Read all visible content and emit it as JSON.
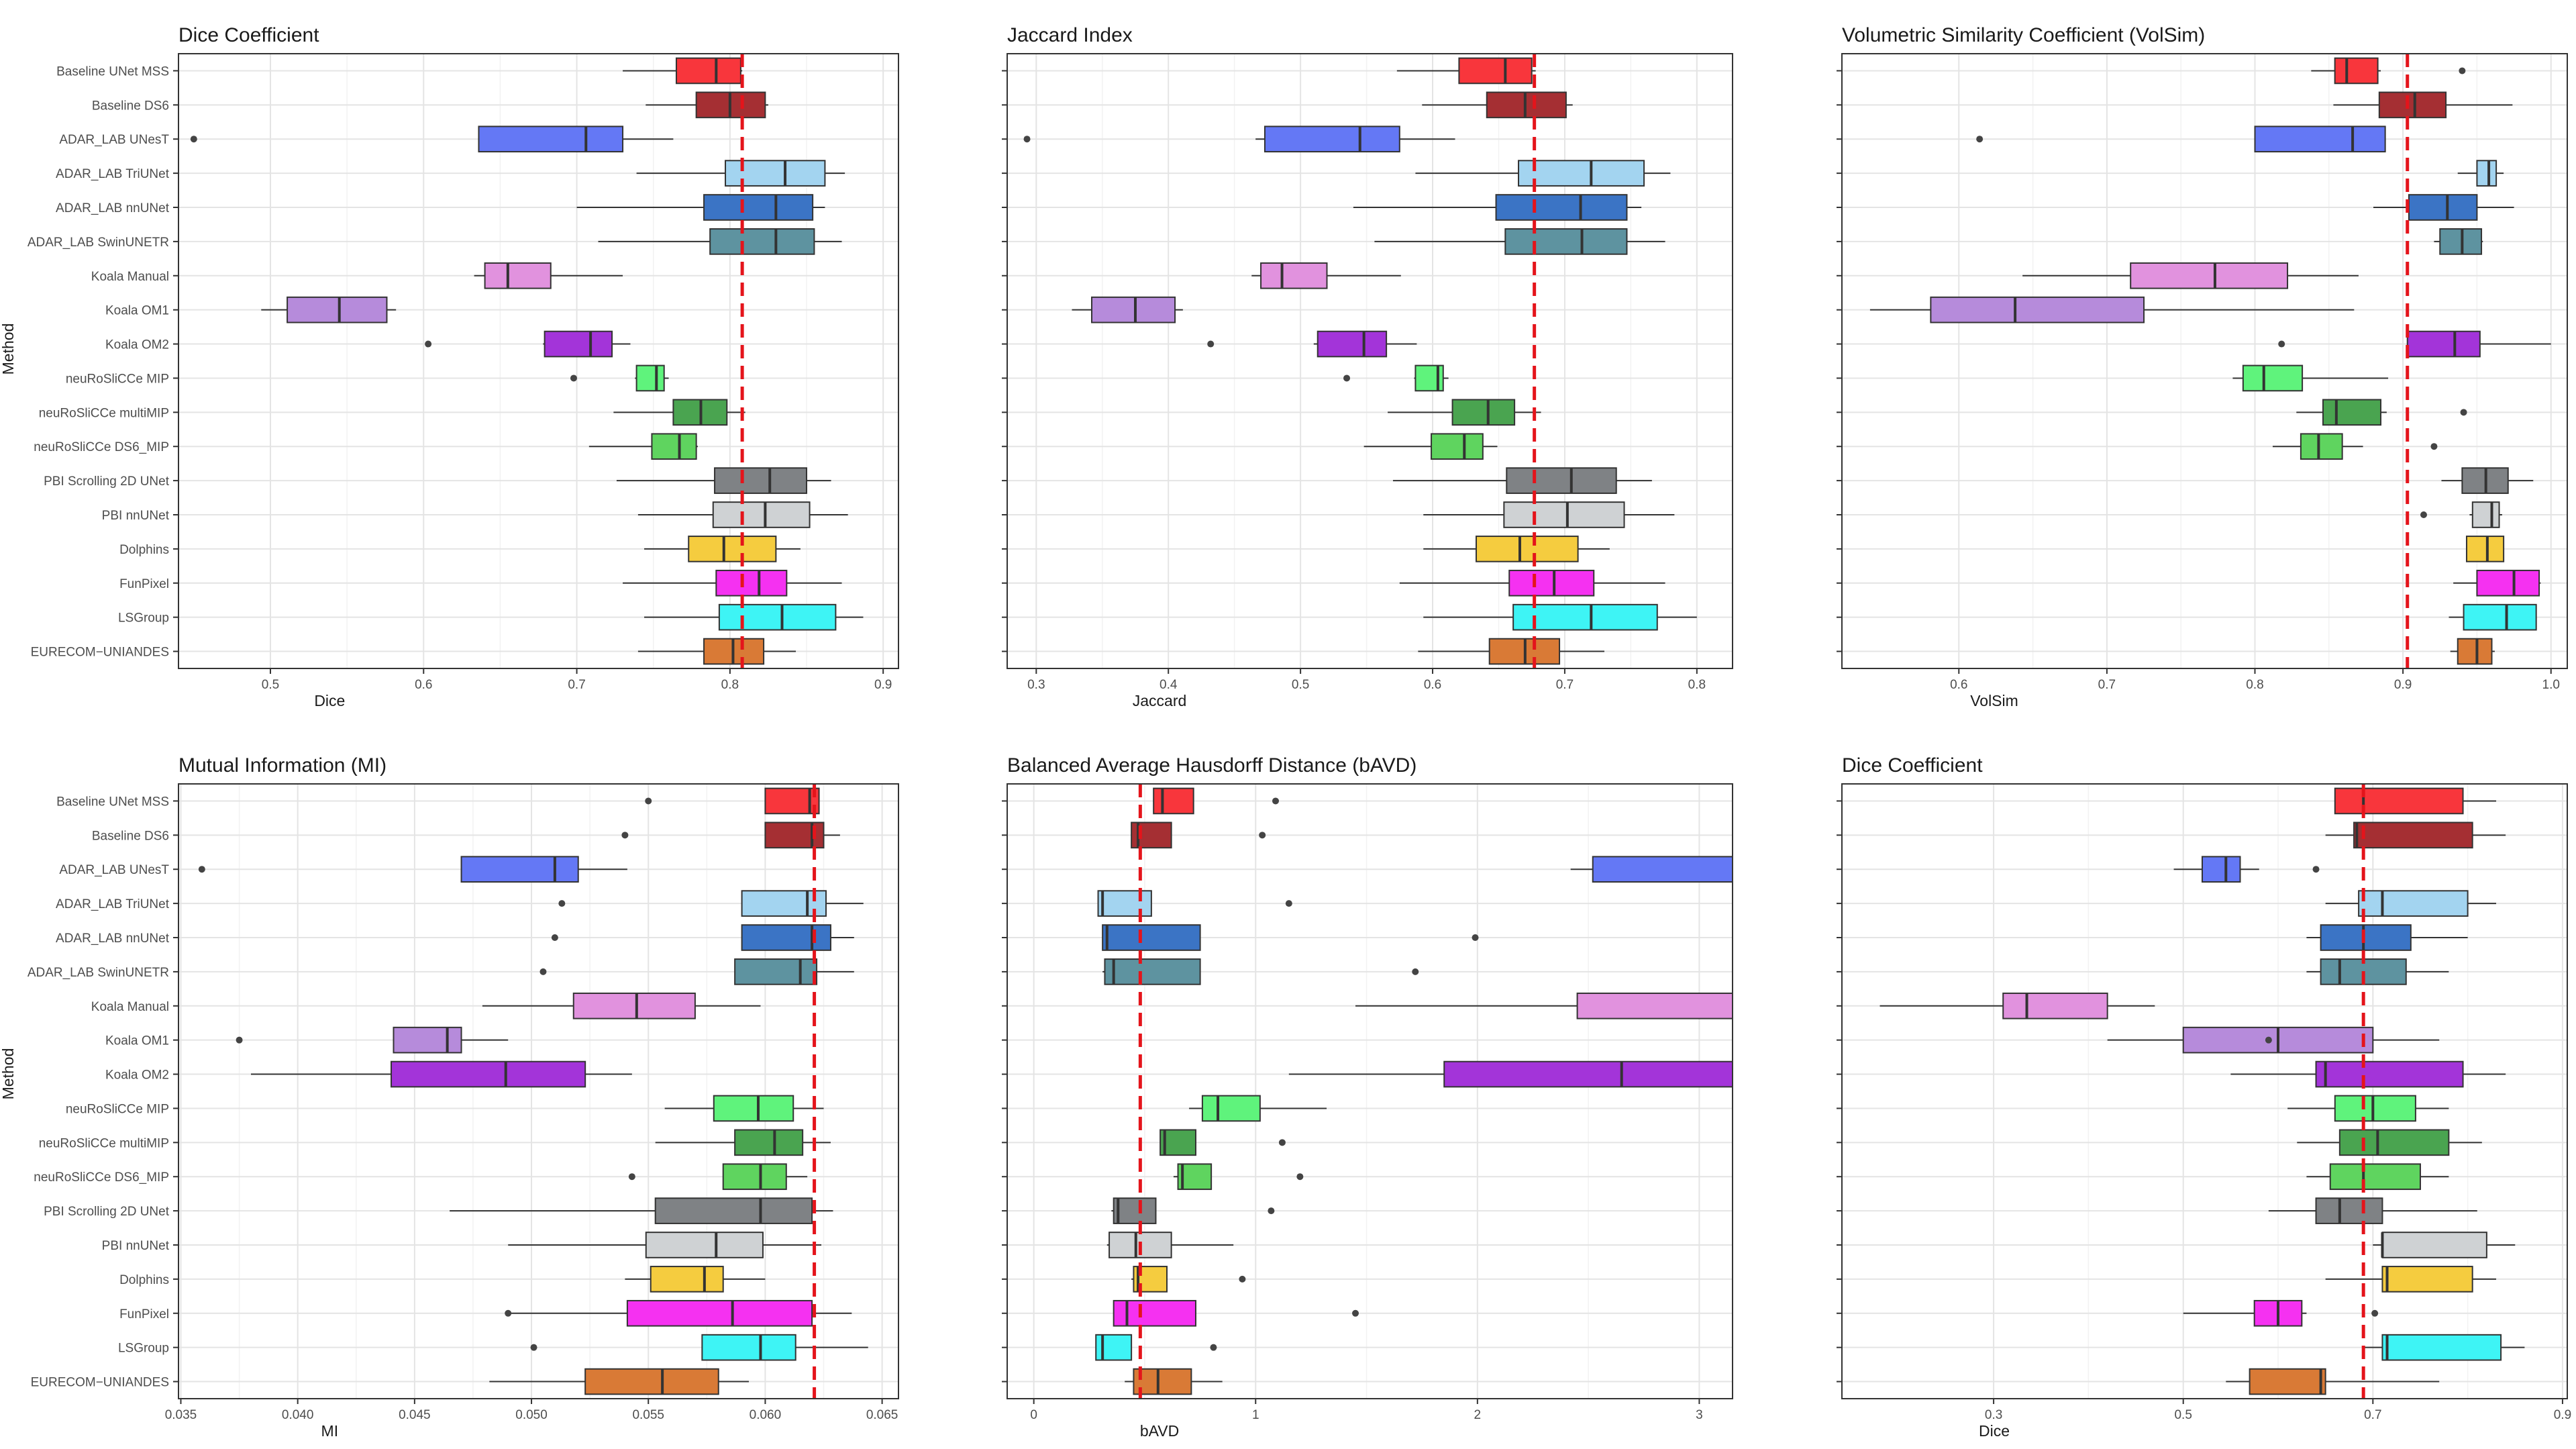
{
  "figure": {
    "y_axis_title": "Method",
    "methods": [
      "Baseline UNet MSS",
      "Baseline DS6",
      "ADAR_LAB UNesT",
      "ADAR_LAB TriUNet",
      "ADAR_LAB nnUNet",
      "ADAR_LAB SwinUNETR",
      "Koala Manual",
      "Koala OM1",
      "Koala OM2",
      "neuRoSliCCe MIP",
      "neuRoSliCCe multiMIP",
      "neuRoSliCCe DS6_MIP",
      "PBI Scrolling 2D UNet",
      "PBI nnUNet",
      "Dolphins",
      "FunPixel",
      "LSGroup",
      "EURECOM−UNIANDES"
    ]
  },
  "colors": [
    "#f8363c",
    "#a52f33",
    "#6478f5",
    "#a3d4f0",
    "#3b74c5",
    "#5e93a0",
    "#e192de",
    "#b68bdb",
    "#a334d9",
    "#5ff37c",
    "#4aa450",
    "#5fd45f",
    "#7f8285",
    "#cfd2d4",
    "#f5cc3f",
    "#f531f1",
    "#3ef4f5",
    "#d97a36"
  ],
  "chart_data": [
    {
      "type": "boxplot",
      "title": "Dice Coefficient",
      "xlabel": "Dice",
      "ylabel": "Method",
      "xlim": [
        0.44,
        0.91
      ],
      "xticks": [
        0.5,
        0.6,
        0.7,
        0.8,
        0.9
      ],
      "xtick_labels": [
        "0.5",
        "0.6",
        "0.7",
        "0.8",
        "0.9"
      ],
      "reference_line": 0.808,
      "boxes": [
        [
          0.73,
          0.765,
          0.791,
          0.807,
          0.808
        ],
        [
          0.745,
          0.778,
          0.8,
          0.823,
          0.825
        ],
        [
          0.636,
          0.636,
          0.706,
          0.73,
          0.763
        ],
        [
          0.739,
          0.797,
          0.836,
          0.862,
          0.875
        ],
        [
          0.7,
          0.783,
          0.83,
          0.854,
          0.862
        ],
        [
          0.714,
          0.787,
          0.83,
          0.855,
          0.873
        ],
        [
          0.633,
          0.64,
          0.655,
          0.683,
          0.73
        ],
        [
          0.494,
          0.511,
          0.545,
          0.576,
          0.582
        ],
        [
          0.678,
          0.679,
          0.709,
          0.723,
          0.735
        ],
        [
          0.738,
          0.739,
          0.752,
          0.757,
          0.76
        ],
        [
          0.724,
          0.763,
          0.781,
          0.798,
          0.81
        ],
        [
          0.708,
          0.749,
          0.767,
          0.778,
          0.779
        ],
        [
          0.726,
          0.79,
          0.826,
          0.85,
          0.866
        ],
        [
          0.74,
          0.789,
          0.823,
          0.852,
          0.877
        ],
        [
          0.744,
          0.773,
          0.796,
          0.83,
          0.846
        ],
        [
          0.73,
          0.791,
          0.819,
          0.837,
          0.873
        ],
        [
          0.744,
          0.793,
          0.834,
          0.869,
          0.887
        ],
        [
          0.74,
          0.783,
          0.802,
          0.822,
          0.843
        ]
      ],
      "outliers": [
        [
          2,
          0.45
        ],
        [
          8,
          0.603
        ],
        [
          9,
          0.698
        ]
      ]
    },
    {
      "type": "boxplot",
      "title": "Jaccard Index",
      "xlabel": "Jaccard",
      "ylabel": "Method",
      "xlim": [
        0.278,
        0.827
      ],
      "xticks": [
        0.3,
        0.4,
        0.5,
        0.6,
        0.7,
        0.8
      ],
      "xtick_labels": [
        "0.3",
        "0.4",
        "0.5",
        "0.6",
        "0.7",
        "0.8"
      ],
      "reference_line": 0.677,
      "boxes": [
        [
          0.573,
          0.62,
          0.655,
          0.675,
          0.678
        ],
        [
          0.592,
          0.641,
          0.67,
          0.701,
          0.706
        ],
        [
          0.466,
          0.473,
          0.545,
          0.575,
          0.617
        ],
        [
          0.587,
          0.665,
          0.72,
          0.76,
          0.78
        ],
        [
          0.54,
          0.648,
          0.712,
          0.747,
          0.758
        ],
        [
          0.556,
          0.655,
          0.713,
          0.747,
          0.776
        ],
        [
          0.463,
          0.47,
          0.486,
          0.52,
          0.576
        ],
        [
          0.327,
          0.342,
          0.375,
          0.405,
          0.411
        ],
        [
          0.51,
          0.513,
          0.548,
          0.565,
          0.588
        ],
        [
          0.586,
          0.587,
          0.604,
          0.608,
          0.612
        ],
        [
          0.566,
          0.615,
          0.642,
          0.662,
          0.682
        ],
        [
          0.548,
          0.599,
          0.624,
          0.638,
          0.649
        ],
        [
          0.57,
          0.656,
          0.705,
          0.739,
          0.766
        ],
        [
          0.593,
          0.654,
          0.702,
          0.745,
          0.783
        ],
        [
          0.593,
          0.633,
          0.666,
          0.71,
          0.734
        ],
        [
          0.575,
          0.658,
          0.692,
          0.722,
          0.776
        ],
        [
          0.593,
          0.661,
          0.72,
          0.77,
          0.8
        ],
        [
          0.589,
          0.643,
          0.67,
          0.696,
          0.73
        ]
      ],
      "outliers": [
        [
          2,
          0.293
        ],
        [
          8,
          0.432
        ],
        [
          9,
          0.535
        ]
      ]
    },
    {
      "type": "boxplot",
      "title": "Volumetric Similarity Coefficient (VolSim)",
      "xlabel": "VolSim",
      "ylabel": "Method",
      "xlim": [
        0.521,
        1.011
      ],
      "xticks": [
        0.6,
        0.7,
        0.8,
        0.9,
        1.0
      ],
      "xtick_labels": [
        "0.6",
        "0.7",
        "0.8",
        "0.9",
        "1.0"
      ],
      "reference_line": 0.903,
      "boxes": [
        [
          0.838,
          0.854,
          0.862,
          0.883,
          0.885
        ],
        [
          0.853,
          0.884,
          0.908,
          0.929,
          0.974
        ],
        [
          0.8,
          0.8,
          0.866,
          0.888,
          0.888
        ],
        [
          0.937,
          0.95,
          0.958,
          0.963,
          0.968
        ],
        [
          0.88,
          0.904,
          0.93,
          0.95,
          0.975
        ],
        [
          0.921,
          0.925,
          0.94,
          0.953,
          0.954
        ],
        [
          0.643,
          0.716,
          0.773,
          0.822,
          0.87
        ],
        [
          0.54,
          0.581,
          0.638,
          0.725,
          0.867
        ],
        [
          0.903,
          0.903,
          0.935,
          0.952,
          1.0
        ],
        [
          0.785,
          0.792,
          0.806,
          0.832,
          0.89
        ],
        [
          0.828,
          0.846,
          0.855,
          0.885,
          0.889
        ],
        [
          0.812,
          0.831,
          0.843,
          0.859,
          0.873
        ],
        [
          0.926,
          0.94,
          0.956,
          0.971,
          0.988
        ],
        [
          0.945,
          0.947,
          0.96,
          0.965,
          0.967
        ],
        [
          0.943,
          0.943,
          0.957,
          0.968,
          0.968
        ],
        [
          0.934,
          0.95,
          0.975,
          0.992,
          0.993
        ],
        [
          0.931,
          0.941,
          0.97,
          0.99,
          0.99
        ],
        [
          0.932,
          0.937,
          0.95,
          0.96,
          0.962
        ]
      ],
      "outliers": [
        [
          0,
          0.94
        ],
        [
          2,
          0.614
        ],
        [
          8,
          0.818
        ],
        [
          10,
          0.941
        ],
        [
          11,
          0.921
        ],
        [
          13,
          0.914
        ]
      ]
    },
    {
      "type": "boxplot",
      "title": "Mutual Information (MI)",
      "xlabel": "MI",
      "ylabel": "Method",
      "xlim": [
        0.0349,
        0.0657
      ],
      "xticks": [
        0.035,
        0.04,
        0.045,
        0.05,
        0.055,
        0.06,
        0.065
      ],
      "xtick_labels": [
        "0.035",
        "0.040",
        "0.045",
        "0.050",
        "0.055",
        "0.060",
        "0.065"
      ],
      "reference_line": 0.0621,
      "boxes": [
        [
          0.06,
          0.06,
          0.0619,
          0.0623,
          0.0623
        ],
        [
          0.06,
          0.06,
          0.062,
          0.0625,
          0.0632
        ],
        [
          0.047,
          0.047,
          0.051,
          0.052,
          0.0541
        ],
        [
          0.059,
          0.059,
          0.0618,
          0.0626,
          0.0642
        ],
        [
          0.059,
          0.059,
          0.062,
          0.0628,
          0.0638
        ],
        [
          0.0587,
          0.0587,
          0.0615,
          0.0622,
          0.0638
        ],
        [
          0.0479,
          0.0518,
          0.0545,
          0.057,
          0.0598
        ],
        [
          0.0441,
          0.0441,
          0.0464,
          0.047,
          0.049
        ],
        [
          0.038,
          0.044,
          0.0489,
          0.0523,
          0.0543
        ],
        [
          0.0557,
          0.0578,
          0.0597,
          0.0612,
          0.0625
        ],
        [
          0.0553,
          0.0587,
          0.0604,
          0.0616,
          0.0628
        ],
        [
          0.0582,
          0.0582,
          0.0598,
          0.0609,
          0.0618
        ],
        [
          0.0465,
          0.0553,
          0.0598,
          0.062,
          0.0629
        ],
        [
          0.049,
          0.0549,
          0.0579,
          0.0599,
          0.0624
        ],
        [
          0.054,
          0.0551,
          0.0574,
          0.0582,
          0.06
        ],
        [
          0.049,
          0.0541,
          0.0586,
          0.062,
          0.0637
        ],
        [
          0.0573,
          0.0573,
          0.0598,
          0.0613,
          0.0644
        ],
        [
          0.0482,
          0.0523,
          0.0556,
          0.058,
          0.0593
        ]
      ],
      "outliers": [
        [
          0,
          0.055
        ],
        [
          1,
          0.054
        ],
        [
          2,
          0.0359
        ],
        [
          3,
          0.0513
        ],
        [
          4,
          0.051
        ],
        [
          5,
          0.0505
        ],
        [
          7,
          0.0375
        ],
        [
          11,
          0.0543
        ],
        [
          15,
          0.049
        ],
        [
          16,
          0.0501
        ]
      ]
    },
    {
      "type": "boxplot",
      "title": "Balanced Average Hausdorff Distance (bAVD)",
      "xlabel": "bAVD",
      "ylabel": "Method",
      "xlim": [
        -0.12,
        3.15
      ],
      "xticks": [
        0,
        1,
        2,
        3
      ],
      "xtick_labels": [
        "0",
        "1",
        "2",
        "3"
      ],
      "reference_line": 0.48,
      "boxes": [
        [
          0.54,
          0.54,
          0.58,
          0.72,
          0.72
        ],
        [
          0.44,
          0.44,
          0.47,
          0.62,
          0.62
        ],
        [
          2.42,
          2.52,
          3.3,
          3.4,
          3.4
        ],
        [
          0.29,
          0.29,
          0.31,
          0.53,
          0.53
        ],
        [
          0.31,
          0.31,
          0.33,
          0.75,
          0.75
        ],
        [
          0.31,
          0.32,
          0.36,
          0.75,
          0.75
        ],
        [
          1.45,
          2.45,
          3.3,
          3.4,
          3.4
        ],
        [
          1.15,
          1.85,
          2.65,
          3.4,
          3.4
        ],
        [
          0.7,
          0.76,
          0.83,
          1.02,
          1.32
        ],
        [
          0.57,
          0.57,
          0.59,
          0.73,
          0.73
        ],
        [
          0.63,
          0.65,
          0.67,
          0.8,
          0.8
        ],
        [
          0.35,
          0.36,
          0.38,
          0.55,
          0.55
        ],
        [
          0.33,
          0.34,
          0.46,
          0.62,
          0.9
        ],
        [
          0.44,
          0.45,
          0.47,
          0.6,
          0.6
        ],
        [
          0.36,
          0.36,
          0.42,
          0.73,
          0.73
        ],
        [
          0.28,
          0.28,
          0.31,
          0.44,
          0.44
        ],
        [
          0.41,
          0.45,
          0.56,
          0.71,
          0.85
        ]
      ],
      "box_rows": [
        0,
        1,
        2,
        3,
        4,
        5,
        6,
        8,
        9,
        10,
        11,
        12,
        13,
        14,
        15,
        16,
        17
      ],
      "outliers": [
        [
          0,
          1.09
        ],
        [
          1,
          1.03
        ],
        [
          3,
          1.15
        ],
        [
          4,
          1.99
        ],
        [
          5,
          1.72
        ],
        [
          10,
          1.12
        ],
        [
          11,
          1.2
        ],
        [
          12,
          1.07
        ],
        [
          14,
          0.94
        ],
        [
          15,
          1.45
        ],
        [
          16,
          0.81
        ]
      ]
    },
    {
      "type": "boxplot",
      "title": "Dice Coefficient",
      "xlabel": "Dice",
      "ylabel": "Method",
      "xlim": [
        0.14,
        0.905
      ],
      "xticks": [
        0.3,
        0.5,
        0.7,
        0.9
      ],
      "xtick_labels": [
        "0.3",
        "0.5",
        "0.7",
        "0.9"
      ],
      "reference_line": 0.69,
      "boxes": [
        [
          0.66,
          0.66,
          0.69,
          0.795,
          0.83
        ],
        [
          0.65,
          0.68,
          0.683,
          0.805,
          0.84
        ],
        [
          0.49,
          0.52,
          0.545,
          0.56,
          0.58
        ],
        [
          0.65,
          0.685,
          0.71,
          0.8,
          0.83
        ],
        [
          0.63,
          0.645,
          0.69,
          0.74,
          0.8
        ],
        [
          0.63,
          0.645,
          0.665,
          0.735,
          0.78
        ],
        [
          0.18,
          0.31,
          0.335,
          0.42,
          0.47
        ],
        [
          0.42,
          0.5,
          0.6,
          0.7,
          0.77
        ],
        [
          0.55,
          0.64,
          0.65,
          0.795,
          0.84
        ],
        [
          0.61,
          0.66,
          0.7,
          0.745,
          0.78
        ],
        [
          0.62,
          0.665,
          0.705,
          0.78,
          0.815
        ],
        [
          0.63,
          0.655,
          0.69,
          0.75,
          0.78
        ],
        [
          0.59,
          0.64,
          0.665,
          0.71,
          0.81
        ],
        [
          0.7,
          0.71,
          0.71,
          0.82,
          0.85
        ],
        [
          0.65,
          0.71,
          0.715,
          0.805,
          0.83
        ],
        [
          0.5,
          0.575,
          0.6,
          0.625,
          0.63
        ],
        [
          0.69,
          0.71,
          0.715,
          0.835,
          0.86
        ],
        [
          0.545,
          0.57,
          0.645,
          0.65,
          0.77
        ]
      ],
      "outliers": [
        [
          2,
          0.64
        ],
        [
          7,
          0.59
        ],
        [
          15,
          0.702
        ]
      ]
    }
  ]
}
